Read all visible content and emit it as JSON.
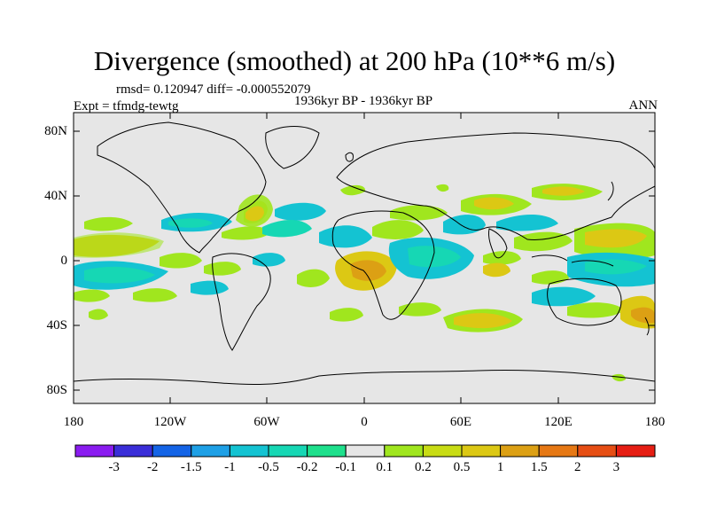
{
  "title": "Divergence (smoothed) at 200 hPa (10**6 m/s)",
  "stats_line": "rmsd= 0.120947 diff= -0.000552079",
  "experiment": "Expt = tfmdg-tewtg",
  "period": "1936kyr BP - 1936kyr BP",
  "season": "ANN",
  "lat_labels": [
    "80N",
    "40N",
    "0",
    "40S",
    "80S"
  ],
  "lon_labels": [
    "180",
    "120W",
    "60W",
    "0",
    "60E",
    "120E",
    "180"
  ],
  "colorbar": {
    "colors": [
      "#8a1cf0",
      "#3a2ed8",
      "#1464e6",
      "#1ea0e6",
      "#14c3d2",
      "#16d7b4",
      "#1ee08c",
      "#e6e6e6",
      "#a0e61e",
      "#c8dc14",
      "#dcc814",
      "#dca014",
      "#e67814",
      "#e64e14",
      "#e61e14"
    ],
    "labels": [
      "-3",
      "-2",
      "-1.5",
      "-1",
      "-0.5",
      "-0.2",
      "-0.1",
      "0.1",
      "0.2",
      "0.5",
      "1",
      "1.5",
      "2",
      "3"
    ]
  },
  "palette": {
    "neutral": "#e6e6e6",
    "cyan": "#14c3d2",
    "teal": "#16d7b4",
    "green": "#a0e61e",
    "yellow": "#c8dc14",
    "orange": "#dcc814"
  }
}
